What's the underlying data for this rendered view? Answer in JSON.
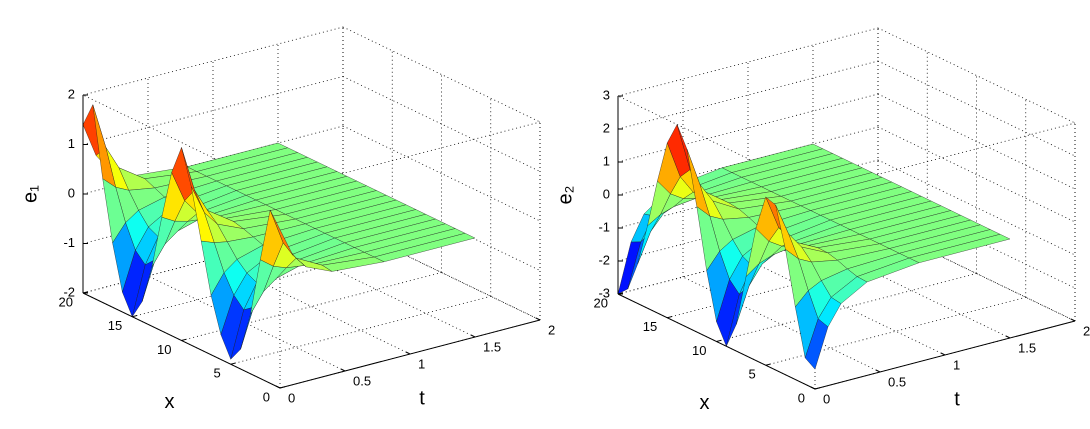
{
  "chart_data": [
    {
      "type": "surface",
      "colormap": "jet",
      "grid": true,
      "xlabel": "x",
      "tlabel": "t",
      "zlabel": "e₁",
      "xlim": [
        0,
        20
      ],
      "xticks": [
        0,
        5,
        10,
        15,
        20
      ],
      "tlim": [
        0,
        2
      ],
      "tticks": [
        0,
        0.5,
        1,
        1.5,
        2
      ],
      "zlim": [
        -2,
        2
      ],
      "zticks": [
        -2,
        -1,
        0,
        1,
        2
      ],
      "x": [
        0,
        1,
        2,
        3,
        4,
        5,
        6,
        7,
        8,
        9,
        10,
        11,
        12,
        13,
        14,
        15,
        16,
        17,
        18,
        19,
        20
      ],
      "t": [
        0,
        0.1,
        0.2,
        0.4,
        0.8,
        1.5
      ],
      "z": [
        [
          1.2,
          1.5,
          0.4,
          -0.8,
          -1.6,
          -1.9,
          -1.5,
          -0.8,
          0.2,
          1.2,
          1.9,
          1.3,
          0.3,
          -0.8,
          -1.6,
          -2.0,
          -1.6,
          -0.7,
          0.5,
          1.9,
          1.4
        ],
        [
          0.61,
          0.77,
          0.2,
          -0.41,
          -0.82,
          -0.97,
          -0.77,
          -0.41,
          0.1,
          0.61,
          0.97,
          0.66,
          0.15,
          -0.41,
          -0.82,
          -1.02,
          -0.82,
          -0.36,
          0.26,
          0.97,
          0.71
        ],
        [
          0.31,
          0.39,
          0.1,
          -0.21,
          -0.42,
          -0.49,
          -0.39,
          -0.21,
          0.05,
          0.31,
          0.49,
          0.34,
          0.08,
          -0.21,
          -0.42,
          -0.52,
          -0.42,
          -0.18,
          0.13,
          0.49,
          0.36
        ],
        [
          0.08,
          0.11,
          0.03,
          -0.06,
          -0.11,
          -0.13,
          -0.11,
          -0.06,
          0.01,
          0.08,
          0.13,
          0.09,
          0.02,
          -0.06,
          -0.11,
          -0.14,
          -0.11,
          -0.05,
          0.04,
          0.13,
          0.1
        ],
        [
          0,
          0,
          0,
          0,
          0,
          0,
          0,
          0,
          0,
          0,
          0,
          0,
          0,
          0,
          0,
          0,
          0,
          0,
          0,
          0,
          0
        ],
        [
          0,
          0,
          0,
          0,
          0,
          0,
          0,
          0,
          0,
          0,
          0,
          0,
          0,
          0,
          0,
          0,
          0,
          0,
          0,
          0,
          0
        ]
      ]
    },
    {
      "type": "surface",
      "colormap": "jet",
      "grid": true,
      "xlabel": "x",
      "tlabel": "t",
      "zlabel": "e₂",
      "xlim": [
        0,
        20
      ],
      "xticks": [
        0,
        5,
        10,
        15,
        20
      ],
      "tlim": [
        0,
        2
      ],
      "tticks": [
        0,
        0.5,
        1,
        1.5,
        2
      ],
      "zlim": [
        -3,
        3
      ],
      "zticks": [
        -3,
        -2,
        -1,
        0,
        1,
        2,
        3
      ],
      "x": [
        0,
        1,
        2,
        3,
        4,
        5,
        6,
        7,
        8,
        9,
        10,
        11,
        12,
        13,
        14,
        15,
        16,
        17,
        18,
        19,
        20
      ],
      "t": [
        0,
        0.1,
        0.2,
        0.4,
        0.8,
        1.5
      ],
      "z": [
        [
          -2.4,
          -2.2,
          -0.8,
          0.8,
          2.0,
          2.1,
          1.0,
          -0.6,
          -2.2,
          -3.0,
          -2.4,
          -1.0,
          0.8,
          2.4,
          3.0,
          2.3,
          1.0,
          -0.5,
          -1.8,
          -2.7,
          -3.0
        ],
        [
          -1.22,
          -1.12,
          -0.41,
          0.41,
          1.02,
          1.07,
          0.51,
          -0.31,
          -1.12,
          -1.53,
          -1.22,
          -0.51,
          0.41,
          1.22,
          1.53,
          1.17,
          0.51,
          -0.26,
          -0.92,
          -1.38,
          -1.53
        ],
        [
          -0.62,
          -0.57,
          -0.21,
          0.21,
          0.52,
          0.55,
          0.26,
          -0.16,
          -0.57,
          -0.78,
          -0.62,
          -0.26,
          0.21,
          0.62,
          0.78,
          0.6,
          0.26,
          -0.13,
          -0.47,
          -0.7,
          -0.78
        ],
        [
          -0.17,
          -0.15,
          -0.06,
          0.06,
          0.14,
          0.15,
          0.07,
          -0.04,
          -0.15,
          -0.21,
          -0.17,
          -0.07,
          0.06,
          0.17,
          0.21,
          0.16,
          0.07,
          -0.04,
          -0.13,
          -0.19,
          -0.21
        ],
        [
          0,
          0,
          0,
          0,
          0,
          0,
          0,
          0,
          0,
          0,
          0,
          0,
          0,
          0,
          0,
          0,
          0,
          0,
          0,
          0,
          0
        ],
        [
          0,
          0,
          0,
          0,
          0,
          0,
          0,
          0,
          0,
          0,
          0,
          0,
          0,
          0,
          0,
          0,
          0,
          0,
          0,
          0,
          0
        ]
      ]
    }
  ]
}
